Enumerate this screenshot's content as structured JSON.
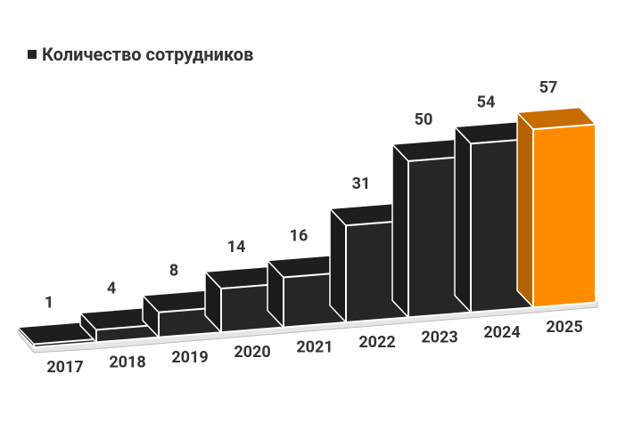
{
  "chart_data": {
    "type": "bar3d",
    "legend_label": "Количество сотрудников",
    "categories": [
      "2017",
      "2018",
      "2019",
      "2020",
      "2021",
      "2022",
      "2023",
      "2024",
      "2025"
    ],
    "values": [
      1,
      4,
      8,
      14,
      16,
      31,
      50,
      54,
      57
    ],
    "colors": [
      "#262626",
      "#262626",
      "#262626",
      "#262626",
      "#262626",
      "#262626",
      "#262626",
      "#262626",
      "#ff8c00"
    ]
  }
}
